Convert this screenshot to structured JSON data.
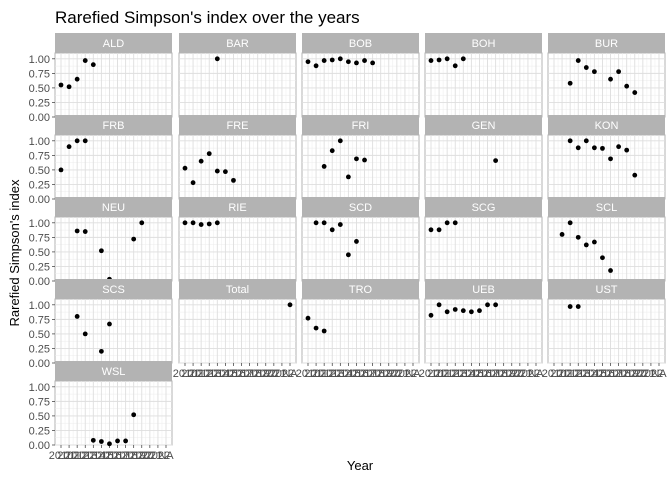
{
  "chart_data": {
    "type": "scatter",
    "title": "Rarefied Simpson's index over the years",
    "xlabel": "Year",
    "ylabel": "Rarefied Simpson's index",
    "ylim": [
      0,
      1.1
    ],
    "yticks": [
      "0.00",
      "0.25",
      "0.50",
      "0.75",
      "1.00"
    ],
    "x_categories": [
      "2010",
      "2011",
      "2012",
      "2013",
      "2014",
      "2015",
      "2016",
      "2017",
      "2018",
      "2019",
      "2020",
      "2021",
      "2022",
      "NA"
    ],
    "x_tick_labels": [
      "2010",
      "2011",
      "2012",
      "2013",
      "2014",
      "2015",
      "2016",
      "2017",
      "2018",
      "2019",
      "2020",
      "2021",
      "2022",
      "NA"
    ],
    "grid": true,
    "layout": {
      "cols": 5
    },
    "facets": [
      {
        "name": "ALD",
        "points": [
          [
            0,
            0.55
          ],
          [
            1,
            0.52
          ],
          [
            2,
            0.65
          ],
          [
            3,
            0.97
          ],
          [
            4,
            0.9
          ]
        ]
      },
      {
        "name": "BAR",
        "points": [
          [
            4,
            1.0
          ]
        ]
      },
      {
        "name": "BOB",
        "points": [
          [
            0,
            0.95
          ],
          [
            1,
            0.88
          ],
          [
            2,
            0.97
          ],
          [
            3,
            0.98
          ],
          [
            4,
            1.0
          ],
          [
            5,
            0.95
          ],
          [
            6,
            0.93
          ],
          [
            7,
            0.97
          ],
          [
            8,
            0.93
          ]
        ]
      },
      {
        "name": "BOH",
        "points": [
          [
            0,
            0.97
          ],
          [
            1,
            0.98
          ],
          [
            2,
            1.0
          ],
          [
            3,
            0.88
          ],
          [
            4,
            1.0
          ]
        ]
      },
      {
        "name": "BUR",
        "points": [
          [
            2,
            0.58
          ],
          [
            3,
            0.97
          ],
          [
            4,
            0.85
          ],
          [
            5,
            0.78
          ],
          [
            7,
            0.65
          ],
          [
            8,
            0.78
          ],
          [
            9,
            0.53
          ],
          [
            10,
            0.42
          ]
        ]
      },
      {
        "name": "FRB",
        "points": [
          [
            0,
            0.5
          ],
          [
            1,
            0.9
          ],
          [
            2,
            1.0
          ],
          [
            3,
            1.0
          ]
        ]
      },
      {
        "name": "FRE",
        "points": [
          [
            0,
            0.53
          ],
          [
            1,
            0.28
          ],
          [
            2,
            0.65
          ],
          [
            3,
            0.78
          ],
          [
            4,
            0.48
          ],
          [
            5,
            0.47
          ],
          [
            6,
            0.32
          ]
        ]
      },
      {
        "name": "FRI",
        "points": [
          [
            2,
            0.56
          ],
          [
            3,
            0.83
          ],
          [
            4,
            1.0
          ],
          [
            5,
            0.38
          ],
          [
            6,
            0.69
          ],
          [
            7,
            0.67
          ]
        ]
      },
      {
        "name": "GEN",
        "points": [
          [
            8,
            0.66
          ]
        ]
      },
      {
        "name": "KON",
        "points": [
          [
            2,
            1.0
          ],
          [
            3,
            0.88
          ],
          [
            4,
            1.0
          ],
          [
            5,
            0.88
          ],
          [
            6,
            0.87
          ],
          [
            7,
            0.69
          ],
          [
            8,
            0.9
          ],
          [
            9,
            0.84
          ],
          [
            10,
            0.41
          ]
        ]
      },
      {
        "name": "NEU",
        "points": [
          [
            2,
            0.86
          ],
          [
            3,
            0.85
          ],
          [
            5,
            0.52
          ],
          [
            6,
            0.03
          ],
          [
            9,
            0.72
          ],
          [
            10,
            1.0
          ]
        ]
      },
      {
        "name": "RIE",
        "points": [
          [
            0,
            1.0
          ],
          [
            1,
            1.0
          ],
          [
            2,
            0.97
          ],
          [
            3,
            0.98
          ],
          [
            4,
            1.0
          ]
        ]
      },
      {
        "name": "SCD",
        "points": [
          [
            1,
            1.0
          ],
          [
            2,
            1.0
          ],
          [
            3,
            0.88
          ],
          [
            4,
            0.97
          ],
          [
            5,
            0.45
          ],
          [
            6,
            0.68
          ]
        ]
      },
      {
        "name": "SCG",
        "points": [
          [
            0,
            0.88
          ],
          [
            1,
            0.88
          ],
          [
            2,
            1.0
          ],
          [
            3,
            1.0
          ]
        ]
      },
      {
        "name": "SCL",
        "points": [
          [
            1,
            0.8
          ],
          [
            2,
            1.0
          ],
          [
            3,
            0.75
          ],
          [
            4,
            0.62
          ],
          [
            5,
            0.67
          ],
          [
            6,
            0.4
          ],
          [
            7,
            0.18
          ]
        ]
      },
      {
        "name": "SCS",
        "points": [
          [
            2,
            0.8
          ],
          [
            3,
            0.5
          ],
          [
            5,
            0.2
          ],
          [
            6,
            0.67
          ]
        ]
      },
      {
        "name": "Total",
        "points": [
          [
            13,
            1.0
          ]
        ]
      },
      {
        "name": "TRO",
        "points": [
          [
            0,
            0.77
          ],
          [
            1,
            0.6
          ],
          [
            2,
            0.55
          ]
        ]
      },
      {
        "name": "UEB",
        "points": [
          [
            0,
            0.82
          ],
          [
            1,
            1.0
          ],
          [
            2,
            0.88
          ],
          [
            3,
            0.92
          ],
          [
            4,
            0.9
          ],
          [
            5,
            0.88
          ],
          [
            6,
            0.9
          ],
          [
            7,
            1.0
          ],
          [
            8,
            1.0
          ]
        ]
      },
      {
        "name": "UST",
        "points": [
          [
            2,
            0.97
          ],
          [
            3,
            0.97
          ]
        ]
      },
      {
        "name": "WSL",
        "points": [
          [
            4,
            0.08
          ],
          [
            5,
            0.06
          ],
          [
            6,
            0.02
          ],
          [
            7,
            0.07
          ],
          [
            8,
            0.07
          ],
          [
            9,
            0.52
          ]
        ]
      }
    ]
  }
}
